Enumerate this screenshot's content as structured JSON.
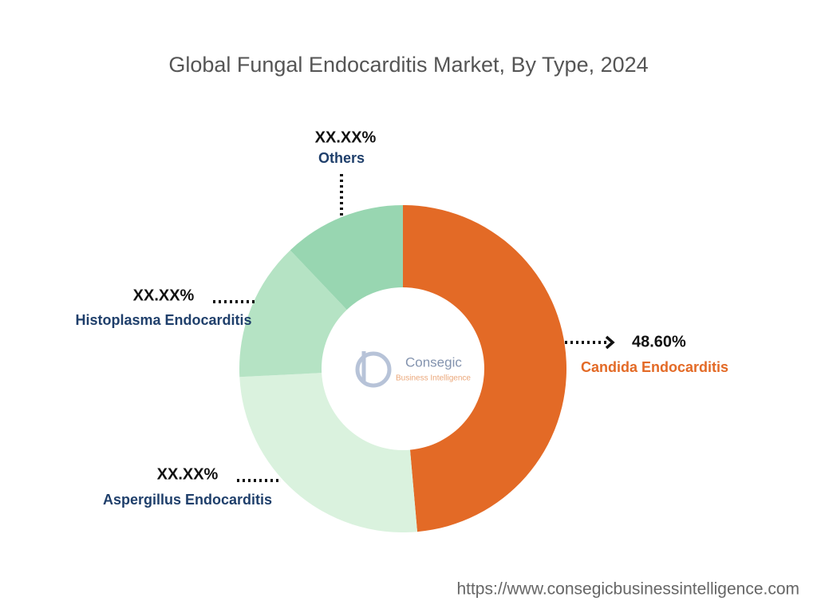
{
  "chart_data": {
    "type": "donut",
    "title": "Global Fungal Endocarditis Market, By Type, 2024",
    "categories": [
      "Candida Endocarditis",
      "Aspergillus Endocarditis",
      "Histoplasma Endocarditis",
      "Others"
    ],
    "values": [
      48.6,
      25.6,
      13.7,
      12.1
    ],
    "value_labels": [
      "48.60%",
      "XX.XX%",
      "XX.XX%",
      "XX.XX%"
    ],
    "colors": [
      "#E36A26",
      "#DAF2DE",
      "#B5E3C4",
      "#98D6B1"
    ]
  },
  "watermark": {
    "name": "Consegic",
    "tagline": "Business Intelligence"
  },
  "source": "https://www.consegicbusinessintelligence.com"
}
